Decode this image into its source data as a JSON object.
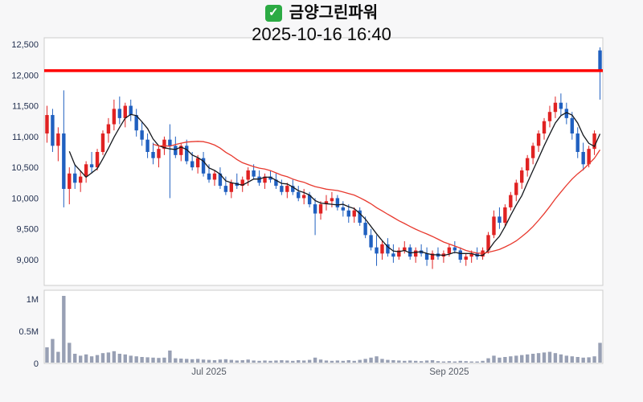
{
  "header": {
    "check_glyph": "✓",
    "title": "금양그린파워",
    "datetime": "2025-10-16 16:40"
  },
  "colors": {
    "up": "#e02222",
    "down": "#2060c0",
    "ma_short": "#15181d",
    "ma_long": "#e8392e",
    "volume_bar": "#98a0b4",
    "axis_text": "#1f2d4d",
    "x_axis_text": "#555b66",
    "panel_border": "#cccccc",
    "panel_bg": "#ffffff"
  },
  "chart_data": {
    "type": "candlestick",
    "title": "금양그린파워",
    "as_of": "2025-10-16 16:40",
    "last_price": 12070,
    "last_price_line_color": "#ff0000",
    "price_axis": {
      "ticks": [
        12500,
        12000,
        11500,
        11000,
        10500,
        10000,
        9500,
        9000
      ],
      "labels": [
        "12,500",
        "12,000",
        "11,500",
        "11,000",
        "10,500",
        "10,000",
        "9,500",
        "9,000"
      ],
      "range": [
        8580,
        12630
      ]
    },
    "volume_axis": {
      "ticks": [
        1000000,
        500000,
        0
      ],
      "labels": [
        "1M",
        "0.5M",
        "0"
      ],
      "range": [
        0,
        1140000
      ]
    },
    "x_ticks": [
      {
        "label": "Jul 2025",
        "index": 29
      },
      {
        "label": "Sep 2025",
        "index": 72
      }
    ],
    "moving_averages": [
      {
        "name": "MA5",
        "period": 5,
        "color_key": "ma_short"
      },
      {
        "name": "MA20",
        "period": 20,
        "color_key": "ma_long"
      }
    ],
    "columns": [
      "open",
      "high",
      "low",
      "close",
      "volume"
    ],
    "candles": [
      [
        11050,
        11500,
        10900,
        11350,
        250000
      ],
      [
        11350,
        11450,
        10750,
        10850,
        380000
      ],
      [
        10850,
        11150,
        10600,
        11050,
        180000
      ],
      [
        11050,
        11750,
        9850,
        10150,
        1050000
      ],
      [
        10150,
        10500,
        9900,
        10400,
        320000
      ],
      [
        10400,
        10550,
        10150,
        10250,
        150000
      ],
      [
        10250,
        10450,
        10100,
        10350,
        120000
      ],
      [
        10350,
        10600,
        10250,
        10550,
        140000
      ],
      [
        10550,
        10750,
        10400,
        10500,
        110000
      ],
      [
        10500,
        10800,
        10450,
        10750,
        130000
      ],
      [
        10750,
        11100,
        10700,
        11050,
        160000
      ],
      [
        11050,
        11300,
        10900,
        11200,
        170000
      ],
      [
        11200,
        11600,
        11100,
        11450,
        190000
      ],
      [
        11450,
        11650,
        11200,
        11300,
        150000
      ],
      [
        11300,
        11550,
        11150,
        11500,
        140000
      ],
      [
        11500,
        11600,
        11250,
        11350,
        120000
      ],
      [
        11350,
        11450,
        11000,
        11100,
        110000
      ],
      [
        11100,
        11250,
        10850,
        10950,
        100000
      ],
      [
        10950,
        11050,
        10650,
        10750,
        95000
      ],
      [
        10750,
        10900,
        10550,
        10650,
        90000
      ],
      [
        10650,
        10850,
        10500,
        10800,
        85000
      ],
      [
        10800,
        11000,
        10700,
        10950,
        90000
      ],
      [
        10950,
        11200,
        10000,
        10850,
        200000
      ],
      [
        10850,
        11000,
        10650,
        10700,
        80000
      ],
      [
        10700,
        10900,
        10600,
        10850,
        75000
      ],
      [
        10850,
        10950,
        10550,
        10600,
        70000
      ],
      [
        10600,
        10750,
        10450,
        10500,
        65000
      ],
      [
        10500,
        10700,
        10400,
        10650,
        70000
      ],
      [
        10650,
        10750,
        10350,
        10400,
        60000
      ],
      [
        10400,
        10550,
        10250,
        10300,
        55000
      ],
      [
        10300,
        10450,
        10200,
        10400,
        50000
      ],
      [
        10400,
        10500,
        10150,
        10200,
        60000
      ],
      [
        10200,
        10350,
        10050,
        10100,
        65000
      ],
      [
        10100,
        10300,
        10000,
        10250,
        55000
      ],
      [
        10250,
        10400,
        10150,
        10200,
        45000
      ],
      [
        10200,
        10350,
        10100,
        10300,
        50000
      ],
      [
        10300,
        10500,
        10200,
        10450,
        60000
      ],
      [
        10450,
        10550,
        10300,
        10350,
        45000
      ],
      [
        10350,
        10450,
        10200,
        10250,
        40000
      ],
      [
        10250,
        10400,
        10150,
        10350,
        45000
      ],
      [
        10350,
        10450,
        10250,
        10300,
        40000
      ],
      [
        10300,
        10400,
        10150,
        10200,
        45000
      ],
      [
        10200,
        10300,
        10050,
        10100,
        50000
      ],
      [
        10100,
        10250,
        10000,
        10200,
        45000
      ],
      [
        10200,
        10300,
        10050,
        10100,
        40000
      ],
      [
        10100,
        10200,
        9950,
        10000,
        50000
      ],
      [
        10000,
        10150,
        9900,
        10050,
        45000
      ],
      [
        10050,
        10100,
        9850,
        9900,
        55000
      ],
      [
        9900,
        10000,
        9400,
        9750,
        90000
      ],
      [
        9750,
        9950,
        9650,
        9900,
        60000
      ],
      [
        9900,
        10050,
        9800,
        9950,
        45000
      ],
      [
        9950,
        10100,
        9850,
        10000,
        40000
      ],
      [
        10000,
        10050,
        9800,
        9850,
        45000
      ],
      [
        9850,
        9950,
        9700,
        9800,
        40000
      ],
      [
        9800,
        9900,
        9600,
        9700,
        50000
      ],
      [
        9700,
        9850,
        9600,
        9800,
        40000
      ],
      [
        9800,
        9850,
        9550,
        9600,
        55000
      ],
      [
        9600,
        9700,
        9350,
        9400,
        70000
      ],
      [
        9400,
        9500,
        9150,
        9200,
        90000
      ],
      [
        9200,
        9400,
        8900,
        9100,
        110000
      ],
      [
        9100,
        9300,
        9000,
        9250,
        70000
      ],
      [
        9250,
        9350,
        9050,
        9100,
        55000
      ],
      [
        9100,
        9250,
        8950,
        9050,
        50000
      ],
      [
        9050,
        9200,
        9000,
        9150,
        45000
      ],
      [
        9150,
        9300,
        9100,
        9200,
        40000
      ],
      [
        9200,
        9250,
        9000,
        9050,
        45000
      ],
      [
        9050,
        9200,
        8950,
        9150,
        40000
      ],
      [
        9150,
        9250,
        9050,
        9100,
        35000
      ],
      [
        9100,
        9200,
        8900,
        9000,
        45000
      ],
      [
        9000,
        9150,
        8850,
        9100,
        50000
      ],
      [
        9100,
        9200,
        9000,
        9050,
        35000
      ],
      [
        9050,
        9150,
        8950,
        9100,
        30000
      ],
      [
        9100,
        9250,
        9050,
        9200,
        35000
      ],
      [
        9200,
        9300,
        9100,
        9150,
        30000
      ],
      [
        9150,
        9200,
        8950,
        9000,
        40000
      ],
      [
        9000,
        9100,
        8900,
        9050,
        35000
      ],
      [
        9050,
        9150,
        8950,
        9100,
        30000
      ],
      [
        9100,
        9200,
        9000,
        9050,
        30000
      ],
      [
        9050,
        9200,
        9000,
        9150,
        40000
      ],
      [
        9150,
        9450,
        9100,
        9400,
        80000
      ],
      [
        9400,
        9800,
        9350,
        9700,
        120000
      ],
      [
        9700,
        9850,
        9500,
        9600,
        90000
      ],
      [
        9600,
        9900,
        9550,
        9850,
        100000
      ],
      [
        9850,
        10100,
        9800,
        10050,
        110000
      ],
      [
        10050,
        10300,
        9950,
        10250,
        120000
      ],
      [
        10250,
        10500,
        10150,
        10450,
        130000
      ],
      [
        10450,
        10700,
        10350,
        10650,
        140000
      ],
      [
        10650,
        10900,
        10550,
        10850,
        150000
      ],
      [
        10850,
        11100,
        10750,
        11050,
        160000
      ],
      [
        11050,
        11300,
        10950,
        11250,
        170000
      ],
      [
        11250,
        11500,
        11150,
        11400,
        180000
      ],
      [
        11400,
        11650,
        11300,
        11550,
        160000
      ],
      [
        11550,
        11700,
        11350,
        11450,
        140000
      ],
      [
        11450,
        11550,
        11200,
        11300,
        120000
      ],
      [
        11300,
        11400,
        10950,
        11050,
        110000
      ],
      [
        11050,
        11150,
        10650,
        10750,
        100000
      ],
      [
        10750,
        10900,
        10450,
        10550,
        90000
      ],
      [
        10550,
        10850,
        10500,
        10800,
        95000
      ],
      [
        10800,
        11100,
        10700,
        11050,
        110000
      ],
      [
        12400,
        12450,
        11600,
        12070,
        320000
      ]
    ]
  }
}
